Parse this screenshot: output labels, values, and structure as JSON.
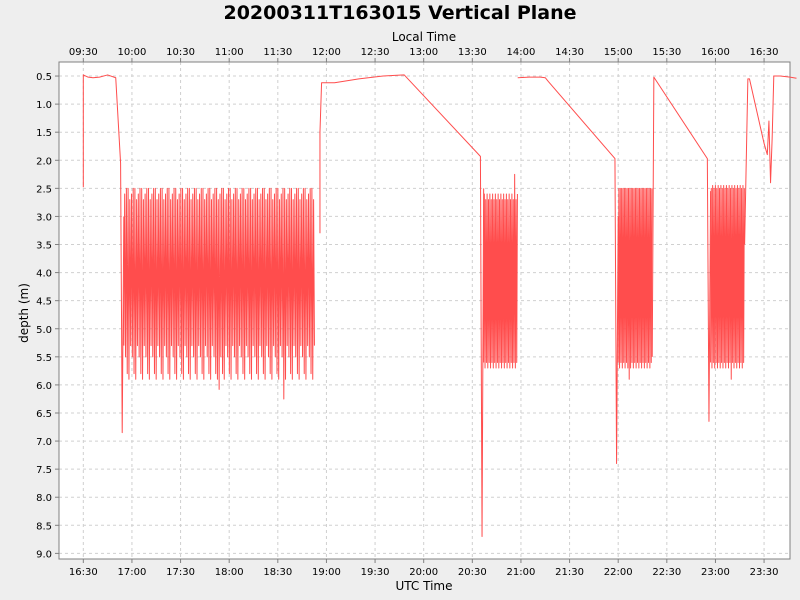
{
  "chart_data": {
    "type": "line",
    "title": "20200311T163015 Vertical Plane",
    "xlabel": "UTC Time",
    "x2label": "Local Time",
    "ylabel": "depth (m)",
    "y_inverted": true,
    "ylim": [
      9.1,
      0.25
    ],
    "xlim": [
      "16:15",
      "23:46"
    ],
    "grid": true,
    "colors": {
      "series": "#ff4d4d",
      "background": "#ffffff",
      "outer": "#eeeeee"
    },
    "x_ticks": [
      "16:30",
      "17:00",
      "17:30",
      "18:00",
      "18:30",
      "19:00",
      "19:30",
      "20:00",
      "20:30",
      "21:00",
      "21:30",
      "22:00",
      "22:30",
      "23:00",
      "23:30"
    ],
    "x2_ticks": [
      "09:30",
      "10:00",
      "10:30",
      "11:00",
      "11:30",
      "12:00",
      "12:30",
      "13:00",
      "13:30",
      "14:00",
      "14:30",
      "15:00",
      "15:30",
      "16:00",
      "16:30"
    ],
    "y_ticks": [
      "0.5",
      "1.0",
      "1.5",
      "2.0",
      "2.5",
      "3.0",
      "3.5",
      "4.0",
      "4.5",
      "5.0",
      "5.5",
      "6.0",
      "6.5",
      "7.0",
      "7.5",
      "8.0",
      "8.5",
      "9.0"
    ],
    "series": [
      {
        "name": "",
        "segments": [
          {
            "type": "points",
            "points": [
              [
                "16:30",
                2.48
              ],
              [
                "16:30",
                0.48
              ],
              [
                "16:33",
                0.52
              ],
              [
                "16:36",
                0.53
              ],
              [
                "16:40",
                0.52
              ],
              [
                "16:45",
                0.48
              ],
              [
                "16:50",
                0.53
              ],
              [
                "16:53",
                2.05
              ],
              [
                "16:54",
                6.85
              ],
              [
                "16:55",
                3.0
              ]
            ]
          },
          {
            "type": "oscillation",
            "start": "16:55",
            "end": "18:53",
            "period_min": 1.05,
            "min": [
              2.2,
              2.6,
              2.4,
              2.5,
              2.3,
              2.5,
              2.6,
              2.7
            ],
            "max": [
              5.3,
              5.7,
              5.5,
              5.6,
              5.8,
              5.4,
              5.9,
              5.5
            ],
            "spikes": [
              [
                "17:02",
                6.05
              ],
              [
                "17:33",
                2.18
              ],
              [
                "17:54",
                6.08
              ],
              [
                "18:34",
                6.25
              ],
              [
                "18:37",
                2.3
              ],
              [
                "18:49",
                6.27
              ],
              [
                "18:55",
                2.32
              ]
            ]
          },
          {
            "type": "points",
            "points": [
              [
                "18:56",
                3.3
              ],
              [
                "18:56",
                1.5
              ],
              [
                "18:57",
                0.62
              ],
              [
                "19:05",
                0.62
              ],
              [
                "19:20",
                0.55
              ],
              [
                "19:35",
                0.5
              ],
              [
                "19:48",
                0.48
              ],
              [
                "20:35",
                1.93
              ],
              [
                "20:36",
                8.7
              ],
              [
                "20:37",
                2.5
              ]
            ]
          },
          {
            "type": "oscillation",
            "start": "20:37",
            "end": "20:58",
            "period_min": 0.85,
            "min": [
              2.4,
              2.6,
              2.5,
              2.7
            ],
            "max": [
              5.6,
              5.8,
              5.7,
              5.9
            ],
            "spikes": [
              [
                "20:45",
                5.95
              ],
              [
                "20:56",
                2.25
              ]
            ]
          },
          {
            "type": "points",
            "points": [
              [
                "20:58",
                0.53
              ],
              [
                "21:05",
                0.52
              ],
              [
                "21:12",
                0.52
              ],
              [
                "21:15",
                0.53
              ],
              [
                "21:17",
                0.6
              ],
              [
                "21:58",
                1.97
              ],
              [
                "21:59",
                7.4
              ],
              [
                "22:00",
                3.0
              ]
            ]
          },
          {
            "type": "oscillation",
            "start": "22:00",
            "end": "22:21",
            "period_min": 0.85,
            "min": [
              2.3,
              2.5,
              2.6,
              2.5
            ],
            "max": [
              5.6,
              5.8,
              5.7,
              5.85
            ],
            "spikes": [
              [
                "22:07",
                5.9
              ],
              [
                "22:11",
                2.25
              ]
            ]
          },
          {
            "type": "points",
            "points": [
              [
                "22:21",
                5.5
              ],
              [
                "22:22",
                0.52
              ],
              [
                "22:55",
                1.97
              ],
              [
                "22:56",
                6.65
              ],
              [
                "22:57",
                2.55
              ]
            ]
          },
          {
            "type": "oscillation",
            "start": "22:57",
            "end": "23:18",
            "period_min": 0.85,
            "min": [
              2.4,
              2.5,
              2.6,
              2.45
            ],
            "max": [
              5.6,
              5.8,
              5.7,
              5.9
            ],
            "spikes": [
              [
                "23:10",
                5.9
              ]
            ]
          },
          {
            "type": "points",
            "points": [
              [
                "23:18",
                3.5
              ],
              [
                "23:20",
                0.55
              ],
              [
                "23:21",
                0.55
              ],
              [
                "23:30",
                1.7
              ],
              [
                "23:32",
                1.9
              ],
              [
                "23:33",
                1.3
              ],
              [
                "23:34",
                2.4
              ],
              [
                "23:35",
                1.6
              ],
              [
                "23:36",
                0.5
              ],
              [
                "23:40",
                0.5
              ],
              [
                "23:46",
                0.52
              ],
              [
                "23:50",
                0.54
              ]
            ]
          }
        ]
      }
    ]
  }
}
